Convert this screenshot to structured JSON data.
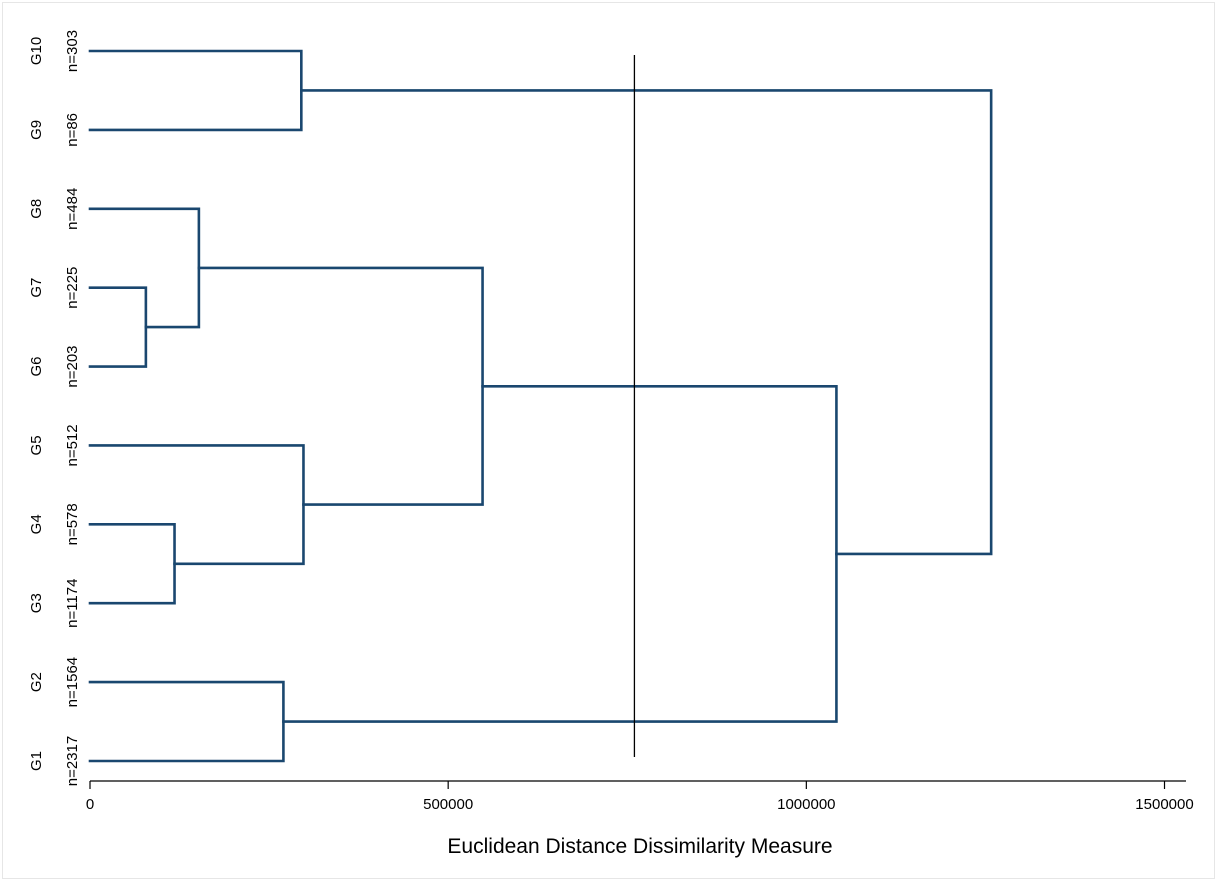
{
  "chart_data": {
    "type": "dendrogram",
    "title": "",
    "xlabel": "Euclidean Distance Dissimilarity Measure",
    "ylabel": "",
    "xlim": [
      0,
      1530000
    ],
    "x_ticks": [
      {
        "value": 0,
        "label": "0"
      },
      {
        "value": 500000,
        "label": "500000"
      },
      {
        "value": 1000000,
        "label": "1000000"
      },
      {
        "value": 1500000,
        "label": "1500000"
      }
    ],
    "leaves": [
      {
        "id": "G1",
        "label": "G1",
        "n_label": "n=2317"
      },
      {
        "id": "G2",
        "label": "G2",
        "n_label": "n=1564"
      },
      {
        "id": "G3",
        "label": "G3",
        "n_label": "n=1174"
      },
      {
        "id": "G4",
        "label": "G4",
        "n_label": "n=578"
      },
      {
        "id": "G5",
        "label": "G5",
        "n_label": "n=512"
      },
      {
        "id": "G6",
        "label": "G6",
        "n_label": "n=203"
      },
      {
        "id": "G7",
        "label": "G7",
        "n_label": "n=225"
      },
      {
        "id": "G8",
        "label": "G8",
        "n_label": "n=484"
      },
      {
        "id": "G9",
        "label": "G9",
        "n_label": "n=86"
      },
      {
        "id": "G10",
        "label": "G10",
        "n_label": "n=303"
      }
    ],
    "merges": [
      {
        "id": "m1",
        "children": [
          "G6",
          "G7"
        ],
        "height": 78000
      },
      {
        "id": "m2",
        "children": [
          "G3",
          "G4"
        ],
        "height": 118000
      },
      {
        "id": "m3",
        "children": [
          "m1",
          "G8"
        ],
        "height": 152000
      },
      {
        "id": "m4",
        "children": [
          "G1",
          "G2"
        ],
        "height": 270000
      },
      {
        "id": "m5",
        "children": [
          "G9",
          "G10"
        ],
        "height": 295000
      },
      {
        "id": "m6",
        "children": [
          "m2",
          "G5"
        ],
        "height": 298000
      },
      {
        "id": "m7",
        "children": [
          "m6",
          "m3"
        ],
        "height": 548000
      },
      {
        "id": "m8",
        "children": [
          "m4",
          "m7"
        ],
        "height": 1042000
      },
      {
        "id": "m9",
        "children": [
          "m8",
          "m5"
        ],
        "height": 1258000
      }
    ],
    "cut_line": 760000,
    "colors": {
      "branch": "#1a476f",
      "axis": "#000000",
      "cut_line": "#000000"
    },
    "grid": false,
    "legend": "none"
  }
}
